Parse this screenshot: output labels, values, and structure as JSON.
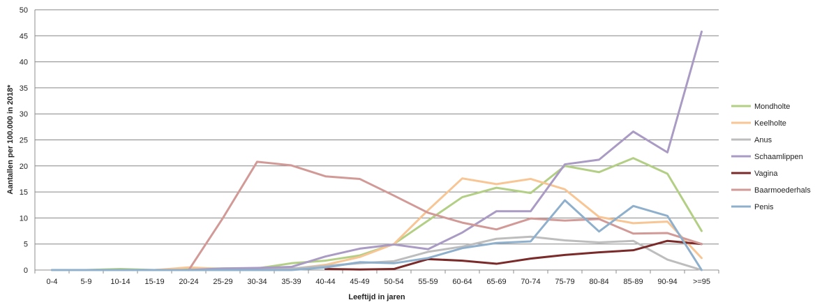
{
  "chart_data": {
    "type": "line",
    "title": "",
    "xlabel": "Leeftijd in jaren",
    "ylabel": "Aantallen per 100.000 in 2018*",
    "ylim": [
      0,
      50
    ],
    "yticks": [
      0,
      5,
      10,
      15,
      20,
      25,
      30,
      35,
      40,
      45,
      50
    ],
    "grid": true,
    "legend_position": "right",
    "categories": [
      "0-4",
      "5-9",
      "10-14",
      "15-19",
      "20-24",
      "25-29",
      "30-34",
      "35-39",
      "40-44",
      "45-49",
      "50-54",
      "55-59",
      "60-64",
      "65-69",
      "70-74",
      "75-79",
      "80-84",
      "85-89",
      "90-94",
      ">=95"
    ],
    "series": [
      {
        "name": "Mondholte",
        "color": "#b3cf85",
        "values": [
          0,
          0,
          0.2,
          0,
          0.3,
          0.3,
          0.3,
          1.3,
          1.8,
          2.8,
          5,
          9.5,
          14,
          15.8,
          14.8,
          20,
          18.8,
          21.5,
          18.5,
          7.5
        ]
      },
      {
        "name": "Keelholte",
        "color": "#f8c594",
        "values": [
          0,
          0,
          0,
          0,
          0.5,
          0.2,
          0.2,
          0.2,
          1,
          2.5,
          5,
          11.5,
          17.6,
          16.5,
          17.5,
          15.5,
          10.2,
          9,
          9.3,
          2.3
        ]
      },
      {
        "name": "Anus",
        "color": "#bdbdbd",
        "values": [
          0,
          0,
          0,
          0,
          0,
          0,
          0.2,
          0.3,
          0.8,
          1.3,
          1.7,
          3.5,
          4.5,
          6,
          6.4,
          5.7,
          5.3,
          5.6,
          2,
          0
        ]
      },
      {
        "name": "Schaamlippen",
        "color": "#a99bc4",
        "values": [
          0,
          0,
          0,
          0,
          0,
          0.3,
          0.4,
          0.6,
          2.6,
          4.1,
          4.9,
          4,
          7.2,
          11.3,
          11.3,
          20.3,
          21.2,
          26.6,
          22.6,
          45.8
        ]
      },
      {
        "name": "Vagina",
        "color": "#7b2a2a",
        "values": [
          null,
          null,
          null,
          null,
          null,
          null,
          null,
          null,
          0.2,
          0.1,
          0.2,
          2.1,
          1.8,
          1.2,
          2.2,
          2.9,
          3.4,
          3.8,
          5.6,
          5
        ]
      },
      {
        "name": "Baarmoederhals",
        "color": "#d29a97",
        "values": [
          null,
          null,
          null,
          null,
          0,
          10,
          20.8,
          20.1,
          18,
          17.5,
          14.3,
          11,
          9.1,
          7.8,
          9.9,
          9.5,
          9.8,
          7,
          7.1,
          5
        ]
      },
      {
        "name": "Penis",
        "color": "#8fb0cc",
        "values": [
          0,
          0,
          0,
          0,
          0,
          0,
          0,
          0,
          0.5,
          1.5,
          1.3,
          2.3,
          4.2,
          5.2,
          5.5,
          13.4,
          7.4,
          12.3,
          10.4,
          0
        ]
      }
    ]
  }
}
